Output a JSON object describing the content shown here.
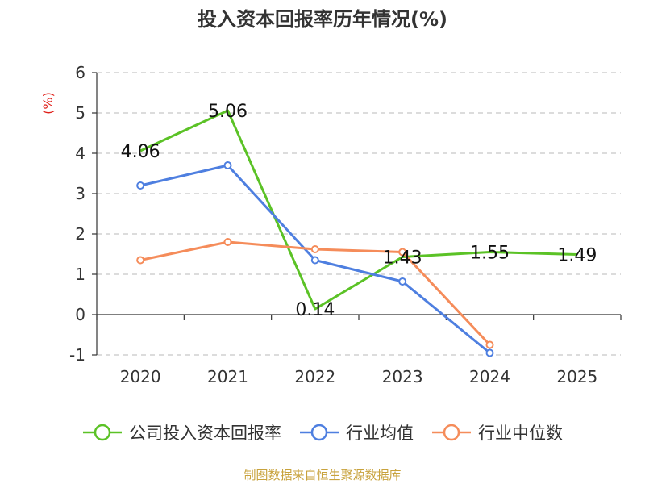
{
  "chart_data": {
    "type": "line",
    "title": "投入资本回报率历年情况(%)",
    "ylabel": "(%)",
    "xlabel": "",
    "categories": [
      "2020",
      "2021",
      "2022",
      "2023",
      "2024",
      "2025"
    ],
    "ylim": [
      -1,
      6
    ],
    "yticks": [
      "6",
      "5",
      "4",
      "3",
      "2",
      "1",
      "0",
      "-1"
    ],
    "grid": true,
    "legend_position": "bottom",
    "series": [
      {
        "name": "公司投入资本回报率",
        "color": "#5bc226",
        "values": [
          4.06,
          5.06,
          0.14,
          1.43,
          1.55,
          1.49
        ],
        "labels": [
          "4.06",
          "5.06",
          "0.14",
          "1.43",
          "1.55",
          "1.49"
        ],
        "markers": [
          false,
          false,
          false,
          false,
          false,
          false
        ]
      },
      {
        "name": "行业均值",
        "color": "#4e7fe0",
        "values": [
          3.2,
          3.7,
          1.35,
          0.82,
          -0.95,
          null
        ],
        "labels": [
          null,
          null,
          null,
          null,
          null,
          null
        ],
        "markers": [
          true,
          true,
          true,
          true,
          true,
          false
        ]
      },
      {
        "name": "行业中位数",
        "color": "#f58c5a",
        "values": [
          1.35,
          1.8,
          1.62,
          1.55,
          -0.75,
          null
        ],
        "labels": [
          null,
          null,
          null,
          null,
          null,
          null
        ],
        "markers": [
          true,
          true,
          true,
          true,
          true,
          false
        ]
      }
    ]
  },
  "footer": "制图数据来自恒生聚源数据库"
}
